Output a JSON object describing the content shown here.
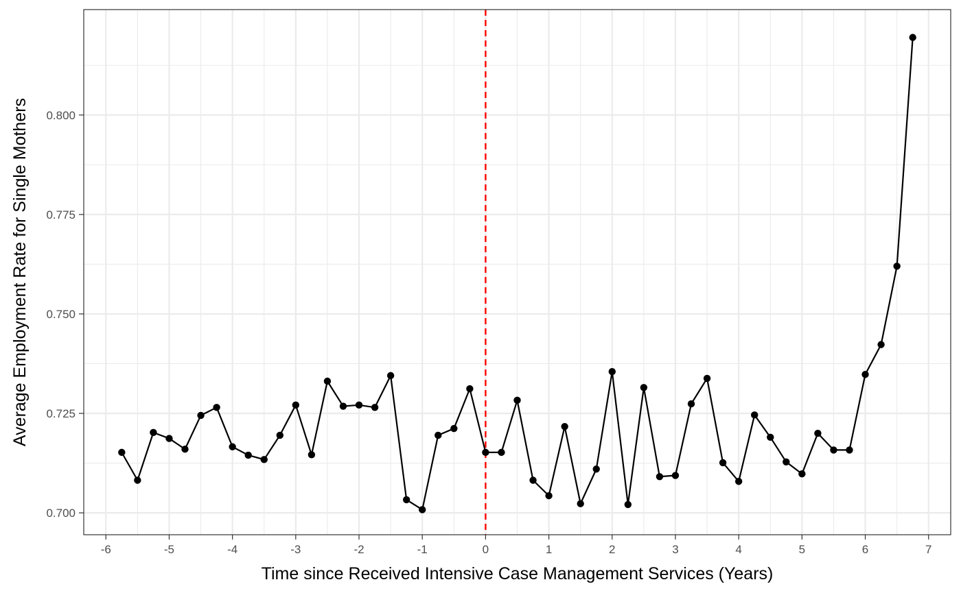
{
  "chart_data": {
    "type": "line",
    "title": "",
    "xlabel": "Time since Received Intensive Case Management Services (Years)",
    "ylabel": "Average Employment Rate for Single Mothers",
    "xlim": [
      -6.35,
      7.35
    ],
    "ylim": [
      0.6945,
      0.8265
    ],
    "x_ticks": [
      -6,
      -5,
      -4,
      -3,
      -2,
      -1,
      0,
      1,
      2,
      3,
      4,
      5,
      6,
      7
    ],
    "x_tick_labels": [
      "-6",
      "-5",
      "-4",
      "-3",
      "-2",
      "-1",
      "0",
      "1",
      "2",
      "3",
      "4",
      "5",
      "6",
      "7"
    ],
    "y_ticks": [
      0.7,
      0.725,
      0.75,
      0.775,
      0.8
    ],
    "y_tick_labels": [
      "0.700",
      "0.725",
      "0.750",
      "0.775",
      "0.800"
    ],
    "grid": true,
    "reference_line": {
      "x": 0,
      "color": "#ff0000",
      "style": "dashed"
    },
    "series": [
      {
        "color": "#000000",
        "points": [
          [
            -5.75,
            0.7152
          ],
          [
            -5.5,
            0.7082
          ],
          [
            -5.25,
            0.7202
          ],
          [
            -5.0,
            0.7187
          ],
          [
            -4.75,
            0.716
          ],
          [
            -4.5,
            0.7245
          ],
          [
            -4.25,
            0.7265
          ],
          [
            -4.0,
            0.7166
          ],
          [
            -3.75,
            0.7145
          ],
          [
            -3.5,
            0.7134
          ],
          [
            -3.25,
            0.7195
          ],
          [
            -3.0,
            0.7271
          ],
          [
            -2.75,
            0.7146
          ],
          [
            -2.5,
            0.7331
          ],
          [
            -2.25,
            0.7268
          ],
          [
            -2.0,
            0.7271
          ],
          [
            -1.75,
            0.7265
          ],
          [
            -1.5,
            0.7345
          ],
          [
            -1.25,
            0.7033
          ],
          [
            -1.0,
            0.7008
          ],
          [
            -0.75,
            0.7195
          ],
          [
            -0.5,
            0.7212
          ],
          [
            -0.25,
            0.7312
          ],
          [
            0.0,
            0.7152
          ],
          [
            0.25,
            0.7152
          ],
          [
            0.5,
            0.7283
          ],
          [
            0.75,
            0.7082
          ],
          [
            1.0,
            0.7043
          ],
          [
            1.25,
            0.7217
          ],
          [
            1.5,
            0.7023
          ],
          [
            1.75,
            0.711
          ],
          [
            2.0,
            0.7355
          ],
          [
            2.25,
            0.7021
          ],
          [
            2.5,
            0.7315
          ],
          [
            2.75,
            0.7091
          ],
          [
            3.0,
            0.7094
          ],
          [
            3.25,
            0.7274
          ],
          [
            3.5,
            0.7338
          ],
          [
            3.75,
            0.7126
          ],
          [
            4.0,
            0.7079
          ],
          [
            4.25,
            0.7246
          ],
          [
            4.5,
            0.719
          ],
          [
            4.75,
            0.7128
          ],
          [
            5.0,
            0.7098
          ],
          [
            5.25,
            0.72
          ],
          [
            5.5,
            0.7158
          ],
          [
            5.75,
            0.7158
          ],
          [
            6.0,
            0.7348
          ],
          [
            6.25,
            0.7423
          ],
          [
            6.5,
            0.762
          ],
          [
            6.75,
            0.8195
          ]
        ]
      }
    ]
  }
}
